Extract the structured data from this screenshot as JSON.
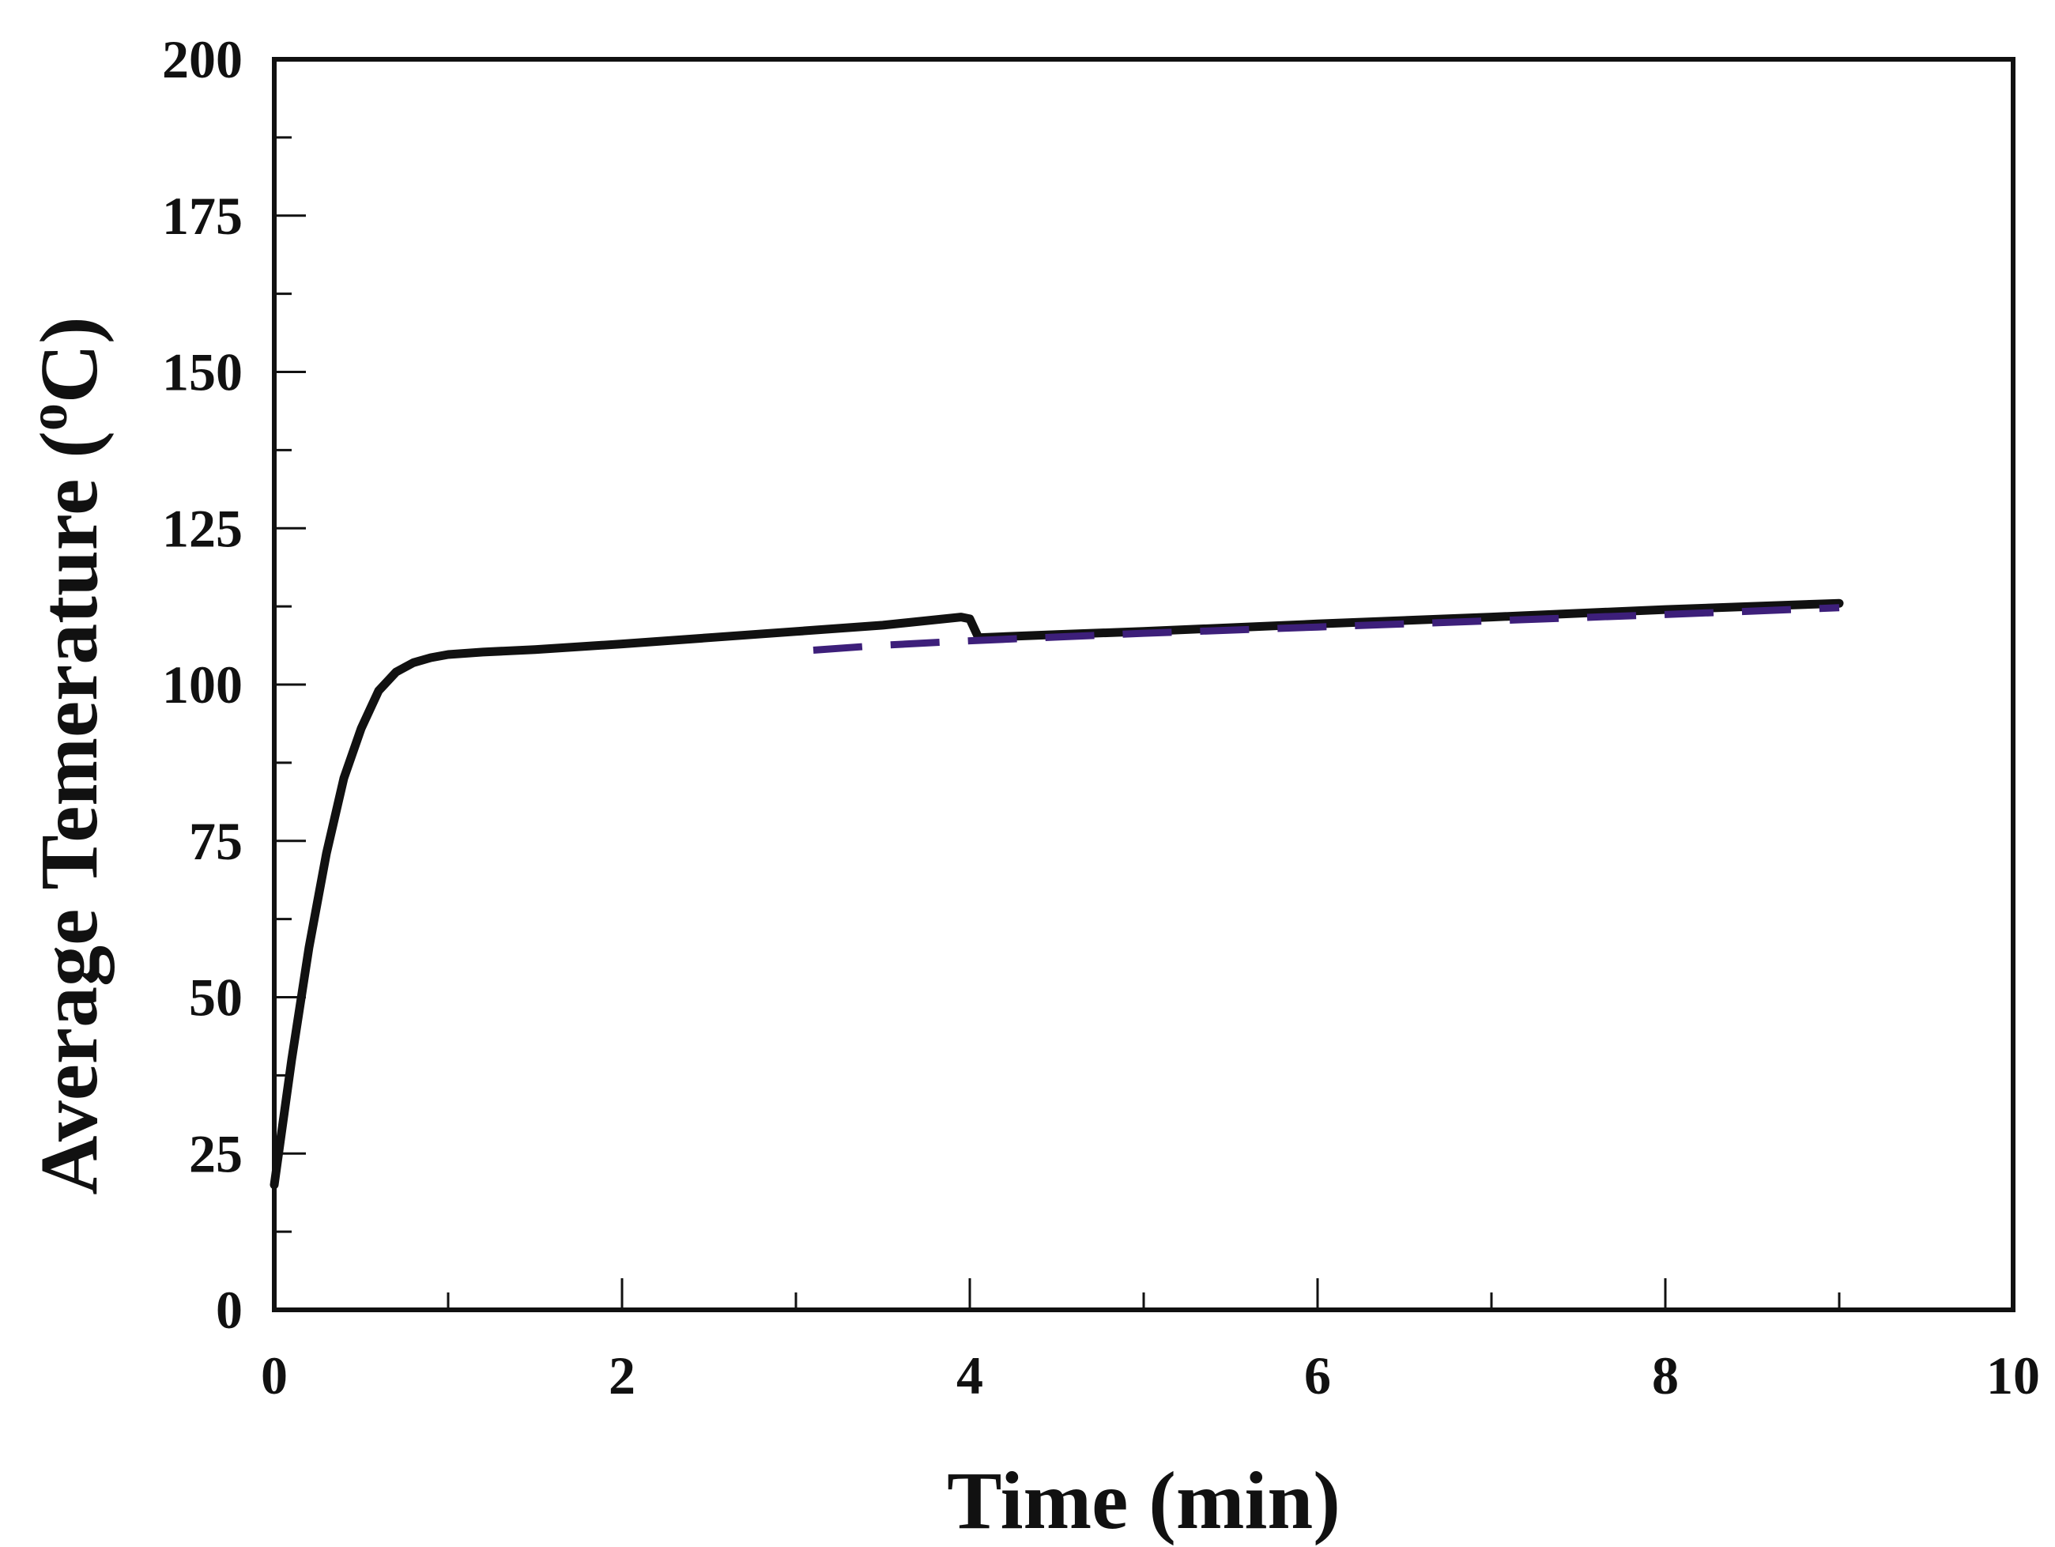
{
  "chart_data": {
    "type": "line",
    "title": "",
    "xlabel": "Time (min)",
    "ylabel_main": "Average Temerature (",
    "ylabel_sup": "o",
    "ylabel_tail": "C)",
    "xlim": [
      0,
      10
    ],
    "ylim": [
      0,
      200
    ],
    "x_ticks": [
      0,
      2,
      4,
      6,
      8,
      10
    ],
    "y_ticks": [
      0,
      25,
      50,
      75,
      100,
      125,
      150,
      175,
      200
    ],
    "x_tick_labels": [
      "0",
      "2",
      "4",
      "6",
      "8",
      "10"
    ],
    "y_tick_labels": [
      "0",
      "25",
      "50",
      "75",
      "100",
      "125",
      "150",
      "175",
      "200"
    ],
    "x_minor_ticks": [
      1,
      3,
      5,
      7,
      9
    ],
    "y_minor_ticks": [
      12.5,
      37.5,
      62.5,
      87.5,
      112.5,
      137.5,
      162.5,
      187.5
    ],
    "grid": false,
    "legend": "none",
    "series": [
      {
        "style": "solid",
        "color": "#111111",
        "x": [
          0,
          0.1,
          0.2,
          0.3,
          0.4,
          0.5,
          0.6,
          0.7,
          0.8,
          0.9,
          1.0,
          1.2,
          1.5,
          2.0,
          2.5,
          3.0,
          3.5,
          3.95,
          4.0,
          4.05,
          4.5,
          5.0,
          6.0,
          7.0,
          8.0,
          9.0
        ],
        "y": [
          20,
          40,
          58,
          73,
          85,
          93,
          99,
          102,
          103.5,
          104.3,
          104.8,
          105.2,
          105.6,
          106.5,
          107.5,
          108.5,
          109.5,
          110.8,
          110.5,
          107.5,
          108,
          108.5,
          109.7,
          110.8,
          112,
          113
        ]
      },
      {
        "style": "dashed",
        "color": "#3d1f7a",
        "x": [
          3.1,
          3.5,
          4.0,
          4.5,
          5.0,
          6.0,
          7.0,
          8.0,
          9.0
        ],
        "y": [
          105.5,
          106.3,
          107,
          107.6,
          108.2,
          109.2,
          110.2,
          111.2,
          112.3
        ]
      }
    ]
  }
}
